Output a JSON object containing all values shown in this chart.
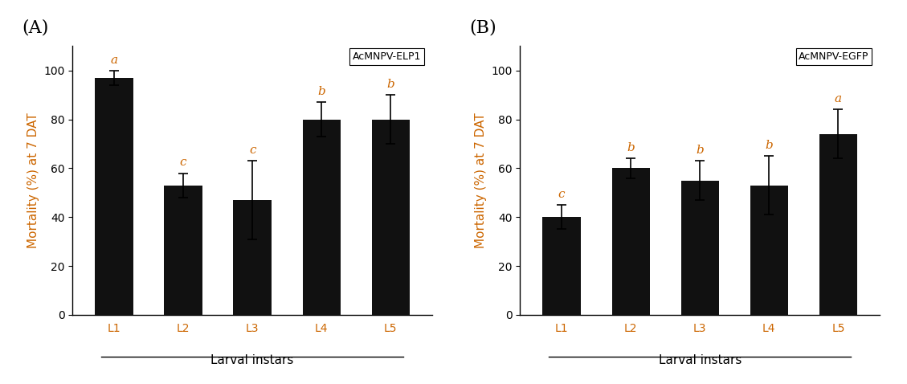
{
  "panel_A": {
    "label": "(A)",
    "categories": [
      "L1",
      "L2",
      "L3",
      "L4",
      "L5"
    ],
    "values": [
      97,
      53,
      47,
      80,
      80
    ],
    "errors": [
      3,
      5,
      16,
      7,
      10
    ],
    "sig_labels": [
      "a",
      "c",
      "c",
      "b",
      "b"
    ],
    "ylabel": "Mortality (%) at 7 DAT",
    "xlabel": "Larval instars",
    "legend_text": "AcMNPV-ELP1",
    "ylim": [
      0,
      110
    ],
    "yticks": [
      0,
      20,
      40,
      60,
      80,
      100
    ],
    "bar_color": "#111111",
    "sig_color": "#cc6600",
    "xtick_color": "#cc6600",
    "ylabel_color": "#cc6600",
    "ytick_color": "#000000"
  },
  "panel_B": {
    "label": "(B)",
    "categories": [
      "L1",
      "L2",
      "L3",
      "L4",
      "L5"
    ],
    "values": [
      40,
      60,
      55,
      53,
      74
    ],
    "errors": [
      5,
      4,
      8,
      12,
      10
    ],
    "sig_labels": [
      "c",
      "b",
      "b",
      "b",
      "a"
    ],
    "ylabel": "Mortality (%) at 7 DAT",
    "xlabel": "Larval instars",
    "legend_text": "AcMNPV-EGFP",
    "ylim": [
      0,
      110
    ],
    "yticks": [
      0,
      20,
      40,
      60,
      80,
      100
    ],
    "bar_color": "#111111",
    "sig_color": "#cc6600",
    "xtick_color": "#cc6600",
    "ylabel_color": "#cc6600",
    "ytick_color": "#000000"
  }
}
